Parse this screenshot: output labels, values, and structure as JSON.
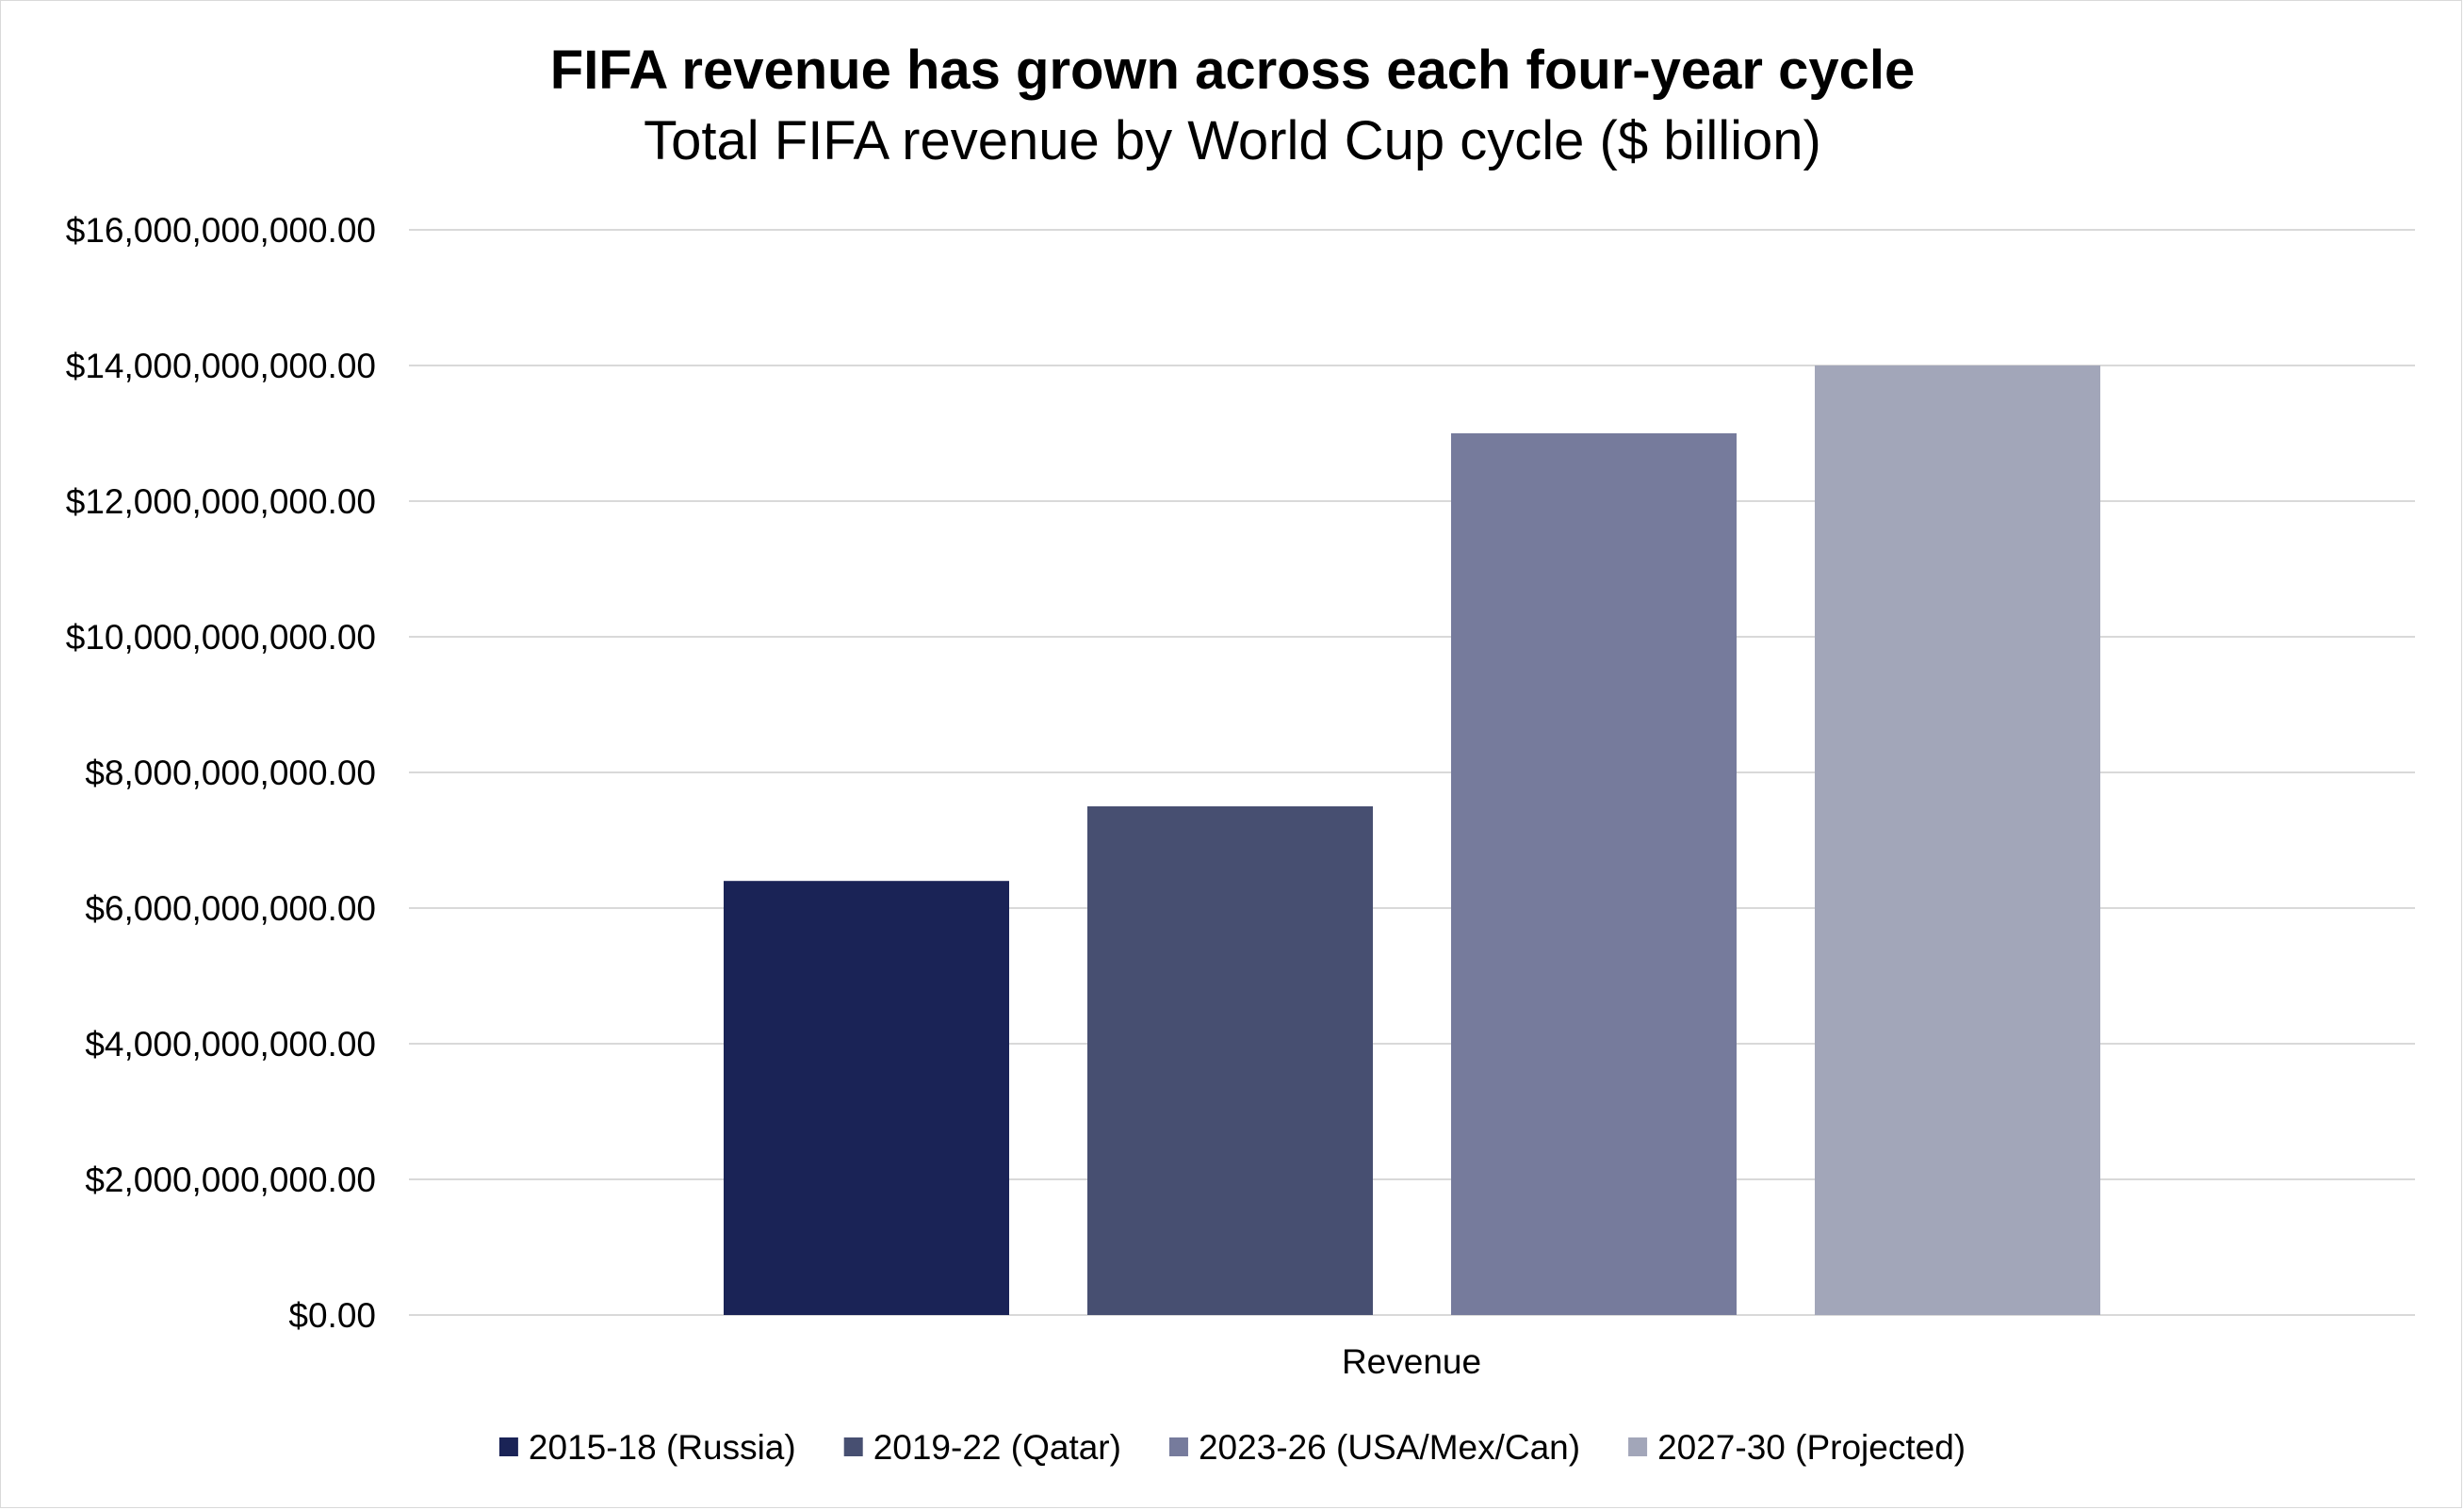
{
  "chart_data": {
    "type": "bar",
    "title": "FIFA revenue has grown across each four-year cycle",
    "subtitle": "Total FIFA revenue by World Cup cycle ($ billion)",
    "categories": [
      "Revenue"
    ],
    "series": [
      {
        "name": "2015-18 (Russia)",
        "values": [
          6400000000
        ],
        "color": "#1a2356"
      },
      {
        "name": "2019-22 (Qatar)",
        "values": [
          7500000000
        ],
        "color": "#474f71"
      },
      {
        "name": "2023-26 (USA/Mex/Can)",
        "values": [
          13000000000
        ],
        "color": "#767b9c"
      },
      {
        "name": "2027-30 (Projected)",
        "values": [
          14000000000
        ],
        "color": "#a2a6b9"
      }
    ],
    "ylim": [
      0,
      16000000000
    ],
    "yticks": [
      0,
      2000000000,
      4000000000,
      6000000000,
      8000000000,
      10000000000,
      12000000000,
      14000000000,
      16000000000
    ],
    "ytick_labels": [
      "$0.00",
      "$2,000,000,000.00",
      "$4,000,000,000.00",
      "$6,000,000,000.00",
      "$8,000,000,000.00",
      "$10,000,000,000.00",
      "$12,000,000,000.00",
      "$14,000,000,000.00",
      "$16,000,000,000.00"
    ],
    "xlabel": "",
    "ylabel": "",
    "grid": true,
    "legend_position": "bottom"
  }
}
